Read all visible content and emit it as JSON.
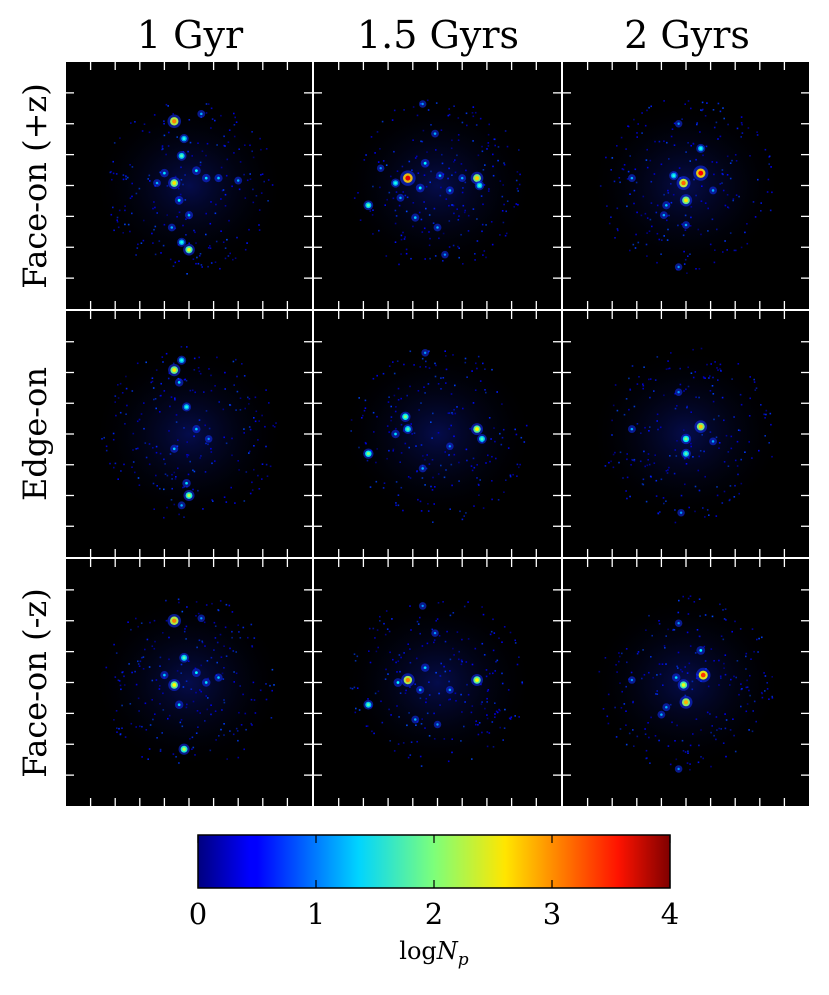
{
  "chart_data": {
    "type": "heatmap",
    "columns": [
      "1 Gyr",
      "1.5 Gyrs",
      "2 Gyrs"
    ],
    "rows": [
      "Face-on (+z)",
      "Edge-on",
      "Face-on (-z)"
    ],
    "colorbar": {
      "label": "logN_p",
      "label_main": "log",
      "label_var": "N",
      "label_sub": "p",
      "ticks": [
        "0",
        "1",
        "2",
        "3",
        "4"
      ],
      "range": [
        0,
        4
      ],
      "colormap": "jet"
    },
    "background_color": "#000000",
    "panels": [
      {
        "row": "Face-on (+z)",
        "column": "1 Gyr",
        "clumps": [
          [
            0.44,
            0.24,
            3.0
          ],
          [
            0.48,
            0.31,
            1.6
          ],
          [
            0.47,
            0.38,
            1.8
          ],
          [
            0.44,
            0.49,
            2.6
          ],
          [
            0.4,
            0.45,
            1.4
          ],
          [
            0.53,
            0.44,
            1.5
          ],
          [
            0.57,
            0.47,
            1.4
          ],
          [
            0.62,
            0.47,
            1.3
          ],
          [
            0.46,
            0.56,
            1.5
          ],
          [
            0.5,
            0.62,
            1.3
          ],
          [
            0.43,
            0.67,
            1.2
          ],
          [
            0.47,
            0.73,
            1.6
          ],
          [
            0.5,
            0.76,
            2.4
          ],
          [
            0.55,
            0.21,
            1.2
          ],
          [
            0.37,
            0.49,
            1.2
          ],
          [
            0.7,
            0.48,
            1.2
          ]
        ]
      },
      {
        "row": "Face-on (+z)",
        "column": "1.5 Gyrs",
        "clumps": [
          [
            0.38,
            0.47,
            3.6
          ],
          [
            0.33,
            0.49,
            1.6
          ],
          [
            0.45,
            0.41,
            1.5
          ],
          [
            0.43,
            0.51,
            1.5
          ],
          [
            0.51,
            0.46,
            1.3
          ],
          [
            0.55,
            0.52,
            1.3
          ],
          [
            0.6,
            0.47,
            1.2
          ],
          [
            0.66,
            0.47,
            2.7
          ],
          [
            0.67,
            0.5,
            1.7
          ],
          [
            0.22,
            0.58,
            1.8
          ],
          [
            0.35,
            0.55,
            1.2
          ],
          [
            0.41,
            0.63,
            1.3
          ],
          [
            0.5,
            0.67,
            1.2
          ],
          [
            0.53,
            0.78,
            1.1
          ],
          [
            0.44,
            0.17,
            1.1
          ],
          [
            0.49,
            0.29,
            1.2
          ],
          [
            0.27,
            0.43,
            1.1
          ]
        ]
      },
      {
        "row": "Face-on (+z)",
        "column": "2 Gyrs",
        "clumps": [
          [
            0.56,
            0.45,
            3.5
          ],
          [
            0.49,
            0.49,
            3.1
          ],
          [
            0.5,
            0.56,
            2.6
          ],
          [
            0.45,
            0.46,
            1.6
          ],
          [
            0.56,
            0.35,
            1.6
          ],
          [
            0.42,
            0.58,
            1.3
          ],
          [
            0.41,
            0.62,
            1.2
          ],
          [
            0.5,
            0.66,
            1.2
          ],
          [
            0.28,
            0.47,
            1.2
          ],
          [
            0.47,
            0.25,
            1.1
          ],
          [
            0.47,
            0.83,
            1.1
          ],
          [
            0.61,
            0.52,
            1.2
          ]
        ]
      },
      {
        "row": "Edge-on",
        "column": "1 Gyr",
        "clumps": [
          [
            0.44,
            0.24,
            2.6
          ],
          [
            0.47,
            0.2,
            1.6
          ],
          [
            0.49,
            0.39,
            1.6
          ],
          [
            0.46,
            0.29,
            1.4
          ],
          [
            0.53,
            0.48,
            1.3
          ],
          [
            0.44,
            0.56,
            1.3
          ],
          [
            0.49,
            0.7,
            1.4
          ],
          [
            0.5,
            0.75,
            2.2
          ],
          [
            0.47,
            0.79,
            1.2
          ],
          [
            0.58,
            0.52,
            1.1
          ]
        ]
      },
      {
        "row": "Edge-on",
        "column": "1.5 Gyrs",
        "clumps": [
          [
            0.37,
            0.43,
            2.0
          ],
          [
            0.38,
            0.48,
            1.8
          ],
          [
            0.33,
            0.5,
            1.4
          ],
          [
            0.66,
            0.48,
            2.5
          ],
          [
            0.68,
            0.52,
            1.8
          ],
          [
            0.22,
            0.58,
            2.0
          ],
          [
            0.45,
            0.17,
            1.1
          ],
          [
            0.44,
            0.64,
            1.2
          ],
          [
            0.55,
            0.55,
            1.1
          ]
        ]
      },
      {
        "row": "Edge-on",
        "column": "2 Gyrs",
        "clumps": [
          [
            0.56,
            0.47,
            2.7
          ],
          [
            0.5,
            0.52,
            2.0
          ],
          [
            0.5,
            0.58,
            1.8
          ],
          [
            0.28,
            0.48,
            1.2
          ],
          [
            0.47,
            0.33,
            1.1
          ],
          [
            0.61,
            0.53,
            1.2
          ],
          [
            0.48,
            0.82,
            1.1
          ]
        ]
      },
      {
        "row": "Face-on (-z)",
        "column": "1 Gyr",
        "clumps": [
          [
            0.44,
            0.25,
            3.0
          ],
          [
            0.48,
            0.4,
            1.8
          ],
          [
            0.44,
            0.51,
            2.5
          ],
          [
            0.4,
            0.47,
            1.3
          ],
          [
            0.53,
            0.46,
            1.5
          ],
          [
            0.57,
            0.5,
            1.4
          ],
          [
            0.62,
            0.48,
            1.3
          ],
          [
            0.46,
            0.59,
            1.4
          ],
          [
            0.48,
            0.77,
            2.2
          ],
          [
            0.55,
            0.24,
            1.1
          ]
        ]
      },
      {
        "row": "Face-on (-z)",
        "column": "1.5 Gyrs",
        "clumps": [
          [
            0.38,
            0.49,
            3.0
          ],
          [
            0.34,
            0.5,
            1.5
          ],
          [
            0.45,
            0.44,
            1.4
          ],
          [
            0.43,
            0.53,
            1.3
          ],
          [
            0.55,
            0.53,
            1.2
          ],
          [
            0.66,
            0.49,
            2.5
          ],
          [
            0.22,
            0.59,
            1.8
          ],
          [
            0.41,
            0.65,
            1.2
          ],
          [
            0.5,
            0.67,
            1.1
          ],
          [
            0.44,
            0.19,
            1.1
          ],
          [
            0.49,
            0.3,
            1.1
          ]
        ]
      },
      {
        "row": "Face-on (-z)",
        "column": "2 Gyrs",
        "clumps": [
          [
            0.57,
            0.47,
            3.3
          ],
          [
            0.49,
            0.51,
            2.4
          ],
          [
            0.5,
            0.58,
            2.8
          ],
          [
            0.46,
            0.48,
            1.4
          ],
          [
            0.56,
            0.37,
            1.5
          ],
          [
            0.42,
            0.6,
            1.2
          ],
          [
            0.4,
            0.63,
            1.2
          ],
          [
            0.28,
            0.49,
            1.1
          ],
          [
            0.47,
            0.26,
            1.1
          ],
          [
            0.47,
            0.85,
            1.1
          ]
        ]
      }
    ]
  }
}
